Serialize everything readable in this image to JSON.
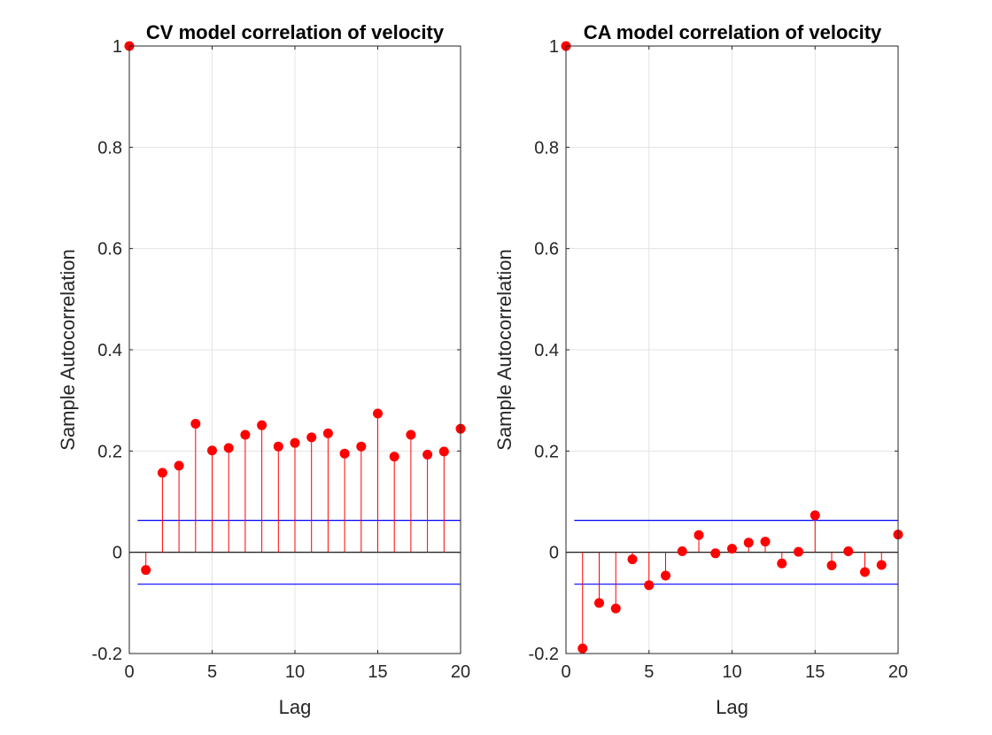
{
  "chart_data": [
    {
      "type": "stem",
      "title": "CV model correlation of velocity",
      "xlabel": "Lag",
      "ylabel": "Sample Autocorrelation",
      "xlim": [
        0,
        20
      ],
      "ylim": [
        -0.2,
        1
      ],
      "xticks": [
        0,
        5,
        10,
        15,
        20
      ],
      "xtick_labels": [
        "0",
        "5",
        "10",
        "15",
        "20"
      ],
      "yticks": [
        -0.2,
        0,
        0.2,
        0.4,
        0.6,
        0.8,
        1
      ],
      "ytick_labels": [
        "-0.2",
        "0",
        "0.2",
        "0.4",
        "0.6",
        "0.8",
        "1"
      ],
      "grid": true,
      "marker_color": "#ff0000",
      "bound_color": "#0000ff",
      "confidence_bounds": [
        0.063,
        -0.063
      ],
      "x": [
        0,
        1,
        2,
        3,
        4,
        5,
        6,
        7,
        8,
        9,
        10,
        11,
        12,
        13,
        14,
        15,
        16,
        17,
        18,
        19,
        20
      ],
      "values": [
        1.0,
        -0.035,
        0.157,
        0.171,
        0.254,
        0.201,
        0.206,
        0.232,
        0.251,
        0.209,
        0.216,
        0.227,
        0.235,
        0.195,
        0.209,
        0.274,
        0.189,
        0.232,
        0.193,
        0.199,
        0.244
      ]
    },
    {
      "type": "stem",
      "title": "CA model correlation of velocity",
      "xlabel": "Lag",
      "ylabel": "Sample Autocorrelation",
      "xlim": [
        0,
        20
      ],
      "ylim": [
        -0.2,
        1
      ],
      "xticks": [
        0,
        5,
        10,
        15,
        20
      ],
      "xtick_labels": [
        "0",
        "5",
        "10",
        "15",
        "20"
      ],
      "yticks": [
        -0.2,
        0,
        0.2,
        0.4,
        0.6,
        0.8,
        1
      ],
      "ytick_labels": [
        "-0.2",
        "0",
        "0.2",
        "0.4",
        "0.6",
        "0.8",
        "1"
      ],
      "grid": true,
      "marker_color": "#ff0000",
      "bound_color": "#0000ff",
      "confidence_bounds": [
        0.063,
        -0.063
      ],
      "x": [
        0,
        1,
        2,
        3,
        4,
        5,
        6,
        7,
        8,
        9,
        10,
        11,
        12,
        13,
        14,
        15,
        16,
        17,
        18,
        19,
        20
      ],
      "values": [
        1.0,
        -0.19,
        -0.1,
        -0.111,
        -0.014,
        -0.065,
        -0.046,
        0.002,
        0.034,
        -0.002,
        0.007,
        0.019,
        0.021,
        -0.022,
        0.001,
        0.073,
        -0.026,
        0.002,
        -0.039,
        -0.025,
        0.035
      ]
    }
  ]
}
